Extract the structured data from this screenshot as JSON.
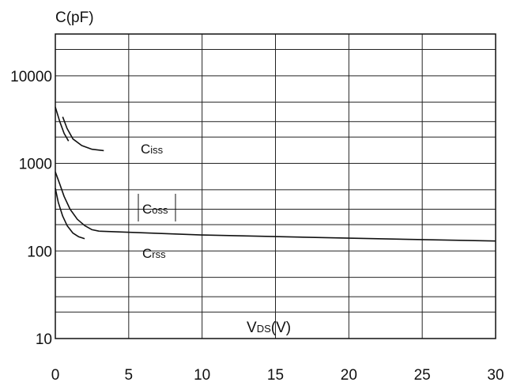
{
  "chart_data": {
    "type": "line",
    "ylabel": "C(pF)",
    "xlabel": "VDS(V)",
    "xlabel_main": "V",
    "xlabel_sub": "DS",
    "xlabel_unit": "(V)",
    "xlim": [
      0,
      30
    ],
    "ylim": [
      10,
      30000
    ],
    "y_scale": "log",
    "grid": true,
    "x_ticks": [
      0,
      5,
      10,
      15,
      20,
      25,
      30
    ],
    "x_tick_labels": [
      "0",
      "5",
      "10",
      "15",
      "20",
      "25",
      "30"
    ],
    "y_ticks": [
      10,
      100,
      1000,
      10000
    ],
    "y_tick_labels": [
      "10",
      "100",
      "1000",
      "10000"
    ],
    "series": [
      {
        "name": "Ciss",
        "label_main": "C",
        "label_sub": "iss",
        "x": [
          0,
          0.3,
          0.6,
          0.9
        ],
        "y": [
          4400,
          3000,
          2200,
          1800
        ]
      },
      {
        "name": "Ciss",
        "label_main": "C",
        "label_sub": "iss",
        "x": [
          0.5,
          0.8,
          1.2,
          1.8,
          2.5,
          3.3
        ],
        "y": [
          3400,
          2500,
          1900,
          1600,
          1450,
          1400
        ]
      },
      {
        "name": "Coss",
        "label_main": "C",
        "label_sub": "oss",
        "x": [
          0,
          0.3,
          0.6,
          1.0,
          1.5,
          2.0,
          2.5,
          3.0
        ],
        "y": [
          800,
          580,
          420,
          300,
          230,
          195,
          175,
          168
        ]
      },
      {
        "name": "Crss",
        "label_main": "C",
        "label_sub": "rss",
        "x": [
          0,
          0.2,
          0.5,
          0.8,
          1.2,
          1.6,
          2.0
        ],
        "y": [
          520,
          360,
          250,
          195,
          160,
          145,
          138
        ]
      },
      {
        "name": "Crss",
        "label_main": "C",
        "label_sub": "rss",
        "x": [
          3,
          10,
          20,
          30
        ],
        "y": [
          168,
          152,
          140,
          130
        ]
      }
    ]
  }
}
